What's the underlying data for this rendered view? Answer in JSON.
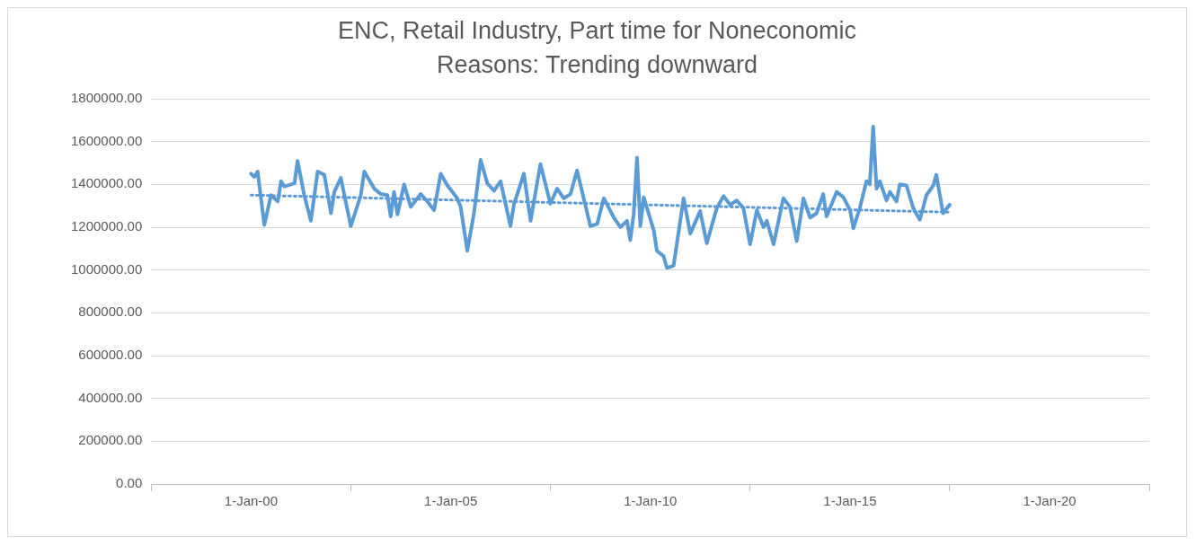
{
  "chart_data": {
    "type": "line",
    "title": "ENC, Retail Industry, Part time for Noneconomic Reasons: Trending downward",
    "xlim": [
      "1997-07-01",
      "2022-07-01"
    ],
    "xticks": [
      {
        "value": "1997-07-01",
        "label": null
      },
      {
        "value": "2000-01-01",
        "label": "1-Jan-00"
      },
      {
        "value": "2002-07-01",
        "label": null
      },
      {
        "value": "2005-01-01",
        "label": "1-Jan-05"
      },
      {
        "value": "2007-07-01",
        "label": null
      },
      {
        "value": "2010-01-01",
        "label": "1-Jan-10"
      },
      {
        "value": "2012-07-01",
        "label": null
      },
      {
        "value": "2015-01-01",
        "label": "1-Jan-15"
      },
      {
        "value": "2017-07-01",
        "label": null
      },
      {
        "value": "2020-01-01",
        "label": "1-Jan-20"
      },
      {
        "value": "2022-07-01",
        "label": null
      }
    ],
    "ylim": [
      0,
      1800000
    ],
    "yticks": [
      {
        "value": 0,
        "label": "0.00"
      },
      {
        "value": 200000,
        "label": "200000.00"
      },
      {
        "value": 400000,
        "label": "400000.00"
      },
      {
        "value": 600000,
        "label": "600000.00"
      },
      {
        "value": 800000,
        "label": "800000.00"
      },
      {
        "value": 1000000,
        "label": "1000000.00"
      },
      {
        "value": 1200000,
        "label": "1200000.00"
      },
      {
        "value": 1400000,
        "label": "1400000.00"
      },
      {
        "value": 1600000,
        "label": "1600000.00"
      },
      {
        "value": 1800000,
        "label": "1800000.00"
      }
    ],
    "grid": "y",
    "legend": false,
    "marker": "none",
    "series": [
      {
        "color": "#5b9bd5",
        "line_style": "solid",
        "x": [
          "2000-01",
          "2000-02",
          "2000-03",
          "2000-05",
          "2000-07",
          "2000-09",
          "2000-10",
          "2000-11",
          "2001-02",
          "2001-03",
          "2001-05",
          "2001-07",
          "2001-09",
          "2001-11",
          "2002-01",
          "2002-02",
          "2002-04",
          "2002-07",
          "2002-10",
          "2002-11",
          "2003-02",
          "2003-04",
          "2003-06",
          "2003-07",
          "2003-08",
          "2003-09",
          "2003-11",
          "2004-01",
          "2004-04",
          "2004-06",
          "2004-08",
          "2004-10",
          "2004-12",
          "2005-03",
          "2005-04",
          "2005-06",
          "2005-08",
          "2005-10",
          "2005-12",
          "2006-02",
          "2006-04",
          "2006-07",
          "2006-08",
          "2006-11",
          "2007-01",
          "2007-04",
          "2007-07",
          "2007-09",
          "2007-11",
          "2008-01",
          "2008-03",
          "2008-07",
          "2008-09",
          "2008-11",
          "2009-02",
          "2009-04",
          "2009-06",
          "2009-07",
          "2009-08",
          "2009-09",
          "2009-10",
          "2009-11",
          "2010-02",
          "2010-03",
          "2010-05",
          "2010-06",
          "2010-08",
          "2010-11",
          "2011-01",
          "2011-04",
          "2011-06",
          "2011-09",
          "2011-11",
          "2012-01",
          "2012-03",
          "2012-05",
          "2012-07",
          "2012-09",
          "2012-11",
          "2012-12",
          "2013-02",
          "2013-05",
          "2013-07",
          "2013-09",
          "2013-11",
          "2014-01",
          "2014-03",
          "2014-05",
          "2014-06",
          "2014-09",
          "2014-11",
          "2015-01",
          "2015-02",
          "2015-04",
          "2015-06",
          "2015-07",
          "2015-08",
          "2015-09",
          "2015-10",
          "2015-12",
          "2016-01",
          "2016-03",
          "2016-04",
          "2016-06",
          "2016-08",
          "2016-10",
          "2016-12",
          "2017-02",
          "2017-03",
          "2017-05",
          "2017-07"
        ],
        "values": [
          1450000,
          1435000,
          1460000,
          1210000,
          1350000,
          1320000,
          1415000,
          1390000,
          1405000,
          1510000,
          1350000,
          1230000,
          1460000,
          1445000,
          1265000,
          1365000,
          1430000,
          1205000,
          1350000,
          1460000,
          1380000,
          1355000,
          1350000,
          1250000,
          1365000,
          1260000,
          1400000,
          1295000,
          1355000,
          1320000,
          1280000,
          1450000,
          1395000,
          1335000,
          1295000,
          1090000,
          1265000,
          1515000,
          1405000,
          1370000,
          1415000,
          1205000,
          1305000,
          1450000,
          1230000,
          1495000,
          1310000,
          1380000,
          1335000,
          1355000,
          1465000,
          1205000,
          1215000,
          1335000,
          1245000,
          1200000,
          1230000,
          1140000,
          1260000,
          1525000,
          1205000,
          1340000,
          1185000,
          1090000,
          1065000,
          1010000,
          1020000,
          1335000,
          1170000,
          1275000,
          1125000,
          1290000,
          1345000,
          1305000,
          1325000,
          1290000,
          1120000,
          1280000,
          1200000,
          1230000,
          1120000,
          1335000,
          1295000,
          1135000,
          1335000,
          1245000,
          1265000,
          1355000,
          1250000,
          1365000,
          1340000,
          1280000,
          1195000,
          1290000,
          1415000,
          1400000,
          1670000,
          1380000,
          1415000,
          1325000,
          1365000,
          1320000,
          1400000,
          1395000,
          1290000,
          1235000,
          1350000,
          1395000,
          1445000,
          1265000,
          1305000
        ]
      },
      {
        "color": "#5b9bd5",
        "line_style": "dotted",
        "x": [
          "2000-01",
          "2017-07"
        ],
        "values": [
          1350000,
          1270000
        ]
      }
    ]
  }
}
